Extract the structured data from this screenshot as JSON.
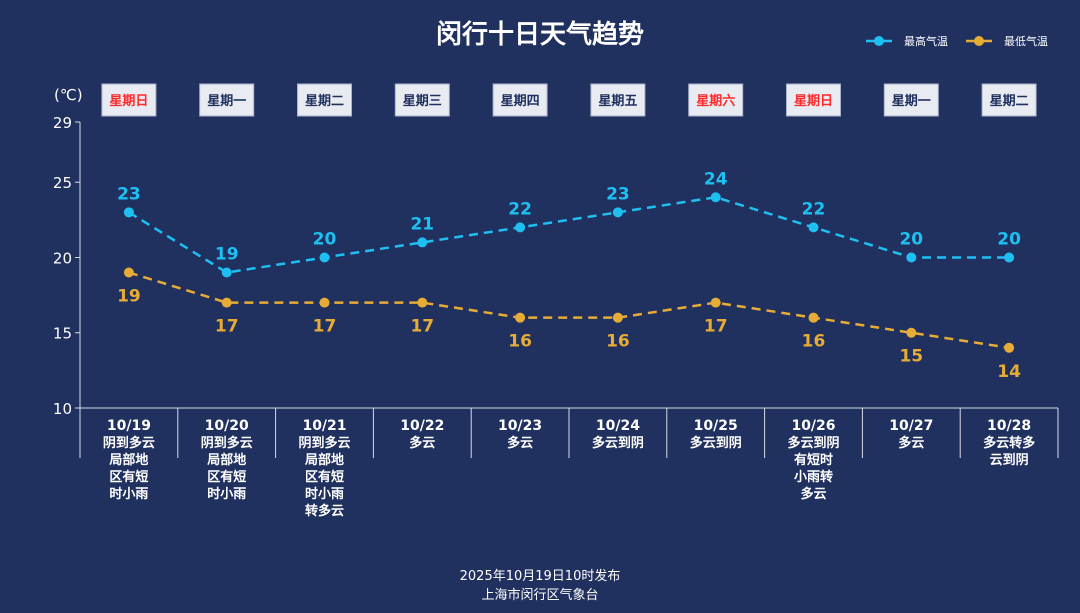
{
  "chart_data": {
    "type": "line",
    "title": "闵行十日天气趋势",
    "unit_label": "(℃)",
    "ylim": [
      10,
      29
    ],
    "y_ticks": [
      "10",
      "15",
      "20",
      "25",
      "29"
    ],
    "legend_position": "top-right",
    "grid": false,
    "categories": [
      "10/19",
      "10/20",
      "10/21",
      "10/22",
      "10/23",
      "10/24",
      "10/25",
      "10/26",
      "10/27",
      "10/28"
    ],
    "weekdays": [
      {
        "label": "星期日",
        "weekend": true
      },
      {
        "label": "星期一",
        "weekend": false
      },
      {
        "label": "星期二",
        "weekend": false
      },
      {
        "label": "星期三",
        "weekend": false
      },
      {
        "label": "星期四",
        "weekend": false
      },
      {
        "label": "星期五",
        "weekend": false
      },
      {
        "label": "星期六",
        "weekend": true
      },
      {
        "label": "星期日",
        "weekend": true
      },
      {
        "label": "星期一",
        "weekend": false
      },
      {
        "label": "星期二",
        "weekend": false
      }
    ],
    "conditions": [
      [
        "阴到多云",
        "局部地",
        "区有短",
        "时小雨"
      ],
      [
        "阴到多云",
        "局部地",
        "区有短",
        "时小雨"
      ],
      [
        "阴到多云",
        "局部地",
        "区有短",
        "时小雨",
        "转多云"
      ],
      [
        "多云"
      ],
      [
        "多云"
      ],
      [
        "多云到阴"
      ],
      [
        "多云到阴"
      ],
      [
        "多云到阴",
        "有短时",
        "小雨转",
        "多云"
      ],
      [
        "多云"
      ],
      [
        "多云转多",
        "云到阴"
      ]
    ],
    "series": [
      {
        "name": "最高气温",
        "color": "#1ec0f2",
        "values": [
          23,
          19,
          20,
          21,
          22,
          23,
          24,
          22,
          20,
          20
        ]
      },
      {
        "name": "最低气温",
        "color": "#e6ac35",
        "values": [
          19,
          17,
          17,
          17,
          16,
          16,
          17,
          16,
          15,
          14
        ]
      }
    ]
  },
  "colors": {
    "background": "#20305f",
    "axis": "#d6dbe8",
    "weekday_text": "#20305f",
    "weekend_text": "#ff2a2a",
    "weekday_box": "#e8ebf2"
  },
  "footer": {
    "line1": "2025年10月19日10时发布",
    "line2": "上海市闵行区气象台"
  }
}
